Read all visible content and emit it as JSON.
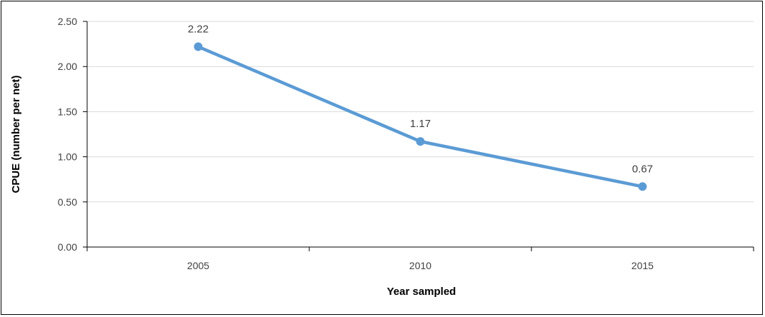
{
  "chart_data": {
    "type": "line",
    "title": "",
    "xlabel": "Year sampled",
    "ylabel": "CPUE (number per net)",
    "categories": [
      "2005",
      "2010",
      "2015"
    ],
    "series": [
      {
        "values": [
          2.22,
          1.17,
          0.67
        ],
        "data_labels": [
          "2.22",
          "1.17",
          "0.67"
        ]
      }
    ],
    "ylim": [
      0,
      2.5
    ],
    "yticks": [
      "0.00",
      "0.50",
      "1.00",
      "1.50",
      "2.00",
      "2.50"
    ],
    "grid": "horizontal",
    "legend": "none",
    "colors": {
      "line": "#5b9bd5",
      "grid": "#d9d9d9",
      "axis": "#000000"
    }
  }
}
